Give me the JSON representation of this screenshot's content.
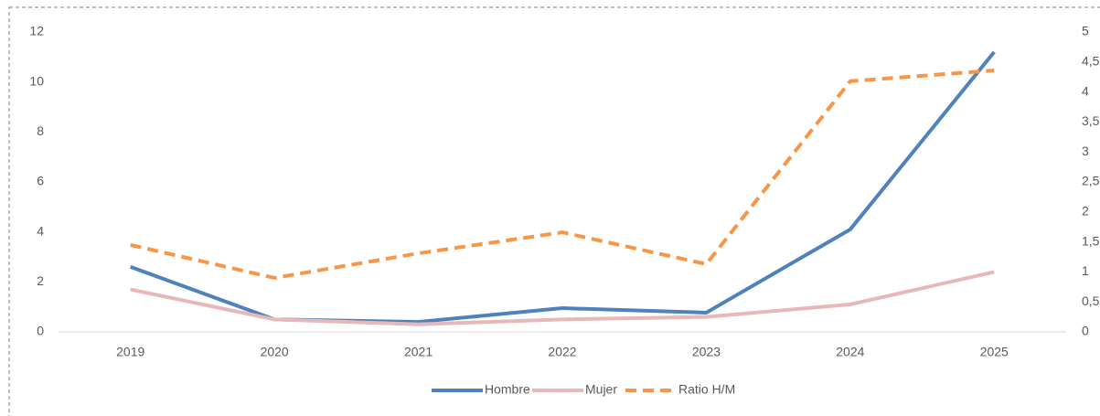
{
  "chart_data": {
    "type": "line",
    "categories": [
      "2019",
      "2020",
      "2021",
      "2022",
      "2023",
      "2024",
      "2025"
    ],
    "series": [
      {
        "name": "Hombre",
        "color": "#4f81bd",
        "values": [
          2.6,
          0.5,
          0.4,
          0.95,
          0.77,
          4.1,
          11.2
        ]
      },
      {
        "name": "Mujer",
        "color": "#e6b9b8",
        "values": [
          1.7,
          0.5,
          0.3,
          0.5,
          0.6,
          1.1,
          2.4
        ]
      },
      {
        "name": "Ratio H/M",
        "color": "#f79646",
        "axis": "y2",
        "dashed": true,
        "values": [
          1.45,
          0.9,
          1.31,
          1.66,
          1.13,
          4.18,
          4.36
        ]
      }
    ],
    "ylim": [
      0,
      12
    ],
    "yticks": [
      0,
      2,
      4,
      6,
      8,
      10,
      12
    ],
    "y2lim": [
      0,
      5
    ],
    "y2ticks": [
      0,
      {
        "value": 0.5,
        "label": "0,5"
      },
      1,
      {
        "value": 1.5,
        "label": "1,5"
      },
      2,
      {
        "value": 2.5,
        "label": "2,5"
      },
      3,
      {
        "value": 3.5,
        "label": "3,5"
      },
      4,
      {
        "value": 4.5,
        "label": "4,5"
      },
      5
    ],
    "legend": "bottom",
    "grid": false
  }
}
